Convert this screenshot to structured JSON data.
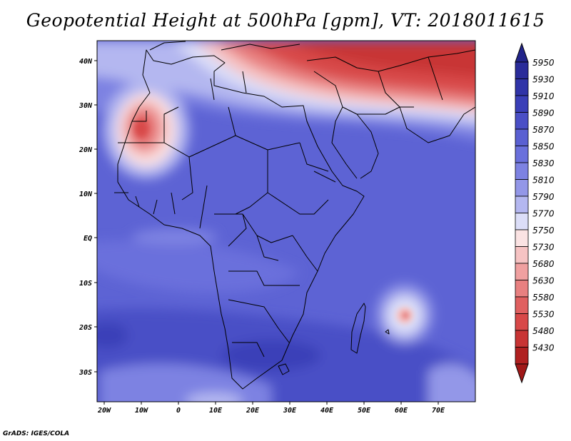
{
  "title": "Geopotential Height at 500hPa [gpm], VT: 2018011615",
  "credit": "GrADS: IGES/COLA",
  "axes": {
    "lon_ticks": [
      "20W",
      "10W",
      "0",
      "10E",
      "20E",
      "30E",
      "40E",
      "50E",
      "60E",
      "70E"
    ],
    "lat_ticks": [
      "40N",
      "30N",
      "20N",
      "10N",
      "EQ",
      "10S",
      "20S",
      "30S"
    ]
  },
  "colorbar": {
    "labels": [
      "5950",
      "5930",
      "5910",
      "5890",
      "5870",
      "5850",
      "5830",
      "5810",
      "5790",
      "5770",
      "5750",
      "5730",
      "5680",
      "5630",
      "5580",
      "5530",
      "5480",
      "5430"
    ],
    "colors": [
      "#2a2c9a",
      "#3034a8",
      "#3a3fb8",
      "#4a4fc6",
      "#5a60d2",
      "#6a70dc",
      "#7d82e2",
      "#9397e8",
      "#b4b7f0",
      "#dcdef8",
      "#fbe3e3",
      "#f6c3c3",
      "#f0a0a0",
      "#e88080",
      "#e06060",
      "#d84848",
      "#c83434",
      "#b02020"
    ],
    "top_arrow_color": "#22248a",
    "bottom_arrow_color": "#a01818"
  }
}
